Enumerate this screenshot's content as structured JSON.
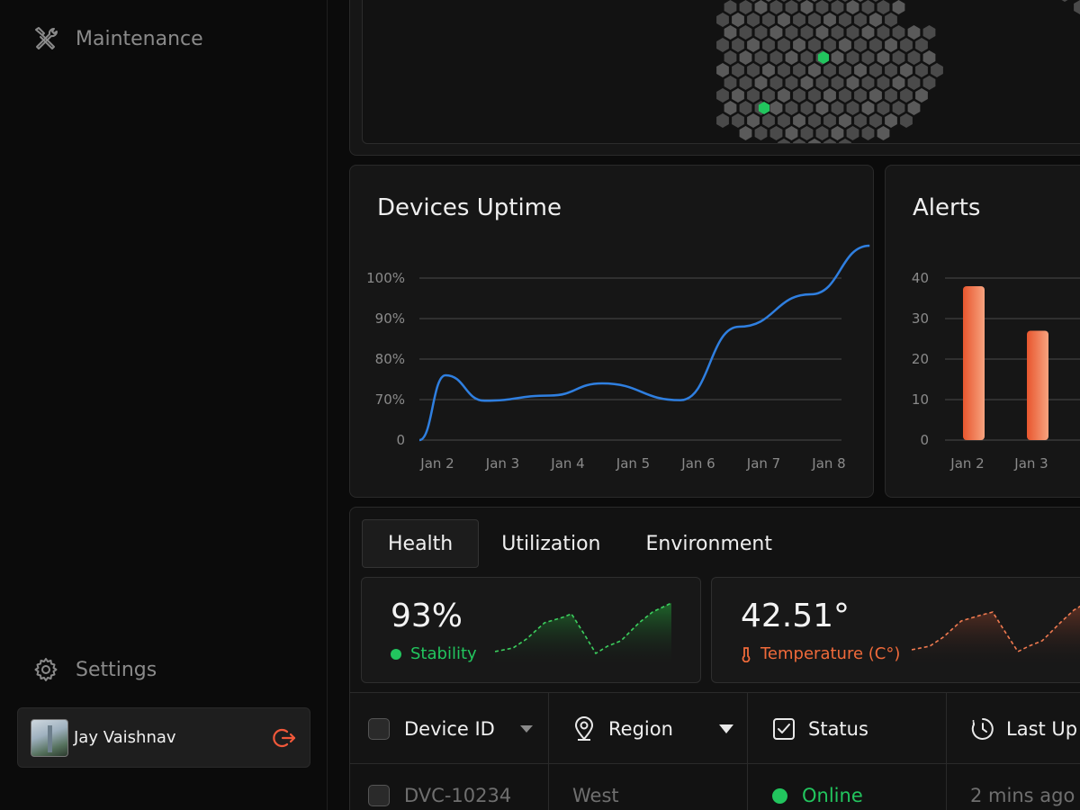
{
  "sidebar": {
    "items": [
      {
        "label": "Maintenance",
        "icon": "wrench-screwdriver-icon"
      },
      {
        "label": "Settings",
        "icon": "gear-icon"
      }
    ],
    "user": {
      "name": "Jay Vaishnav"
    }
  },
  "uptime": {
    "title": "Devices Uptime",
    "chart_data": {
      "type": "line",
      "title": "Devices Uptime",
      "y_ticks": [
        "100%",
        "90%",
        "80%",
        "70%",
        "0"
      ],
      "categories": [
        "Jan 2",
        "Jan 3",
        "Jan 4",
        "Jan 5",
        "Jan 6",
        "Jan 7",
        "Jan 8"
      ],
      "x": [
        0,
        0.4,
        1,
        2,
        2.8,
        4,
        4.9,
        6,
        6.9
      ],
      "values": [
        0,
        76,
        68,
        71,
        74,
        69,
        88,
        96,
        108
      ],
      "color": "#2f7fe0"
    }
  },
  "alerts": {
    "title": "Alerts",
    "chart_data": {
      "type": "bar",
      "title": "Alerts",
      "y_ticks": [
        "40",
        "30",
        "20",
        "10",
        "0"
      ],
      "ylim": [
        0,
        40
      ],
      "categories": [
        "Jan 2",
        "Jan 3"
      ],
      "values": [
        38,
        27
      ],
      "color": "#f07a50"
    }
  },
  "tabs": [
    {
      "label": "Health",
      "active": true
    },
    {
      "label": "Utilization",
      "active": false
    },
    {
      "label": "Environment",
      "active": false
    }
  ],
  "metrics": [
    {
      "value": "93%",
      "label": "Stability",
      "color": "#22c55e"
    },
    {
      "value": "42.51°",
      "label": "Temperature (C°)",
      "color": "#f06a3a"
    }
  ],
  "table": {
    "headers": [
      "Device ID",
      "Region",
      "Status",
      "Last Up"
    ],
    "rows": [
      {
        "device_id": "DVC-10234",
        "region": "West",
        "status": "Online",
        "last_update": "2 mins ago"
      }
    ],
    "status_color": "#22c55e"
  }
}
